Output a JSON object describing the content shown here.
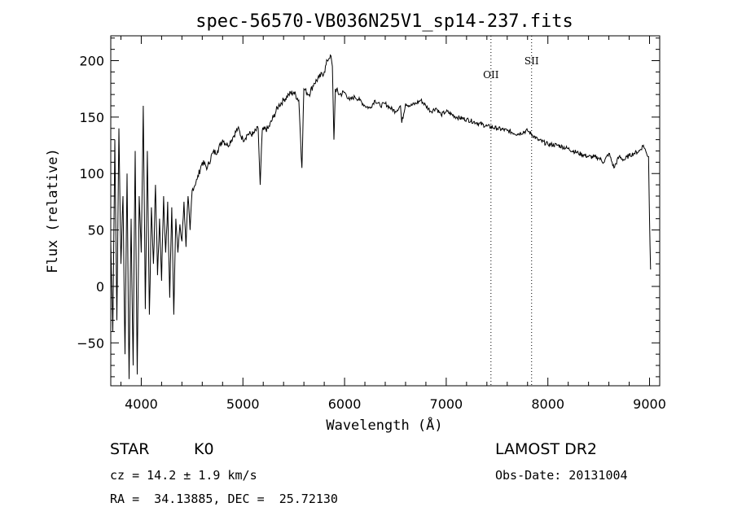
{
  "chart_data": {
    "type": "line",
    "title": "spec-56570-VB036N25V1_sp14-237.fits",
    "xlabel": "Wavelength (Å)",
    "ylabel": "Flux (relative)",
    "xlim": [
      3700,
      9100
    ],
    "ylim": [
      -88,
      222
    ],
    "xticks": [
      4000,
      5000,
      6000,
      7000,
      8000,
      9000
    ],
    "yticks": [
      -50,
      0,
      50,
      100,
      150,
      200
    ],
    "line_color": "#000000",
    "series": [
      {
        "x": [
          3700,
          3720,
          3740,
          3760,
          3780,
          3800,
          3820,
          3840,
          3860,
          3880,
          3900,
          3920,
          3940,
          3960,
          3980,
          4000,
          4020,
          4040,
          4060,
          4080,
          4100,
          4120,
          4140,
          4160,
          4180,
          4200,
          4220,
          4240,
          4260,
          4280,
          4300,
          4320,
          4340,
          4360,
          4380,
          4400,
          4420,
          4440,
          4460,
          4480,
          4500,
          4550,
          4600,
          4650,
          4700,
          4750,
          4800,
          4850,
          4900,
          4950,
          5000,
          5050,
          5100,
          5150,
          5170,
          5190,
          5250,
          5300,
          5350,
          5400,
          5450,
          5500,
          5550,
          5580,
          5600,
          5650,
          5700,
          5750,
          5800,
          5830,
          5860,
          5880,
          5895,
          5910,
          5950,
          6000,
          6050,
          6100,
          6150,
          6200,
          6250,
          6300,
          6350,
          6400,
          6450,
          6500,
          6550,
          6563,
          6600,
          6650,
          6700,
          6750,
          6800,
          6850,
          6900,
          6950,
          7000,
          7100,
          7200,
          7300,
          7400,
          7500,
          7600,
          7700,
          7800,
          7900,
          8000,
          8100,
          8200,
          8300,
          8400,
          8500,
          8550,
          8600,
          8650,
          8700,
          8750,
          8800,
          8850,
          8900,
          8940,
          8970,
          8990,
          9000,
          9010
        ],
        "y": [
          40,
          -40,
          130,
          -30,
          140,
          20,
          80,
          -60,
          100,
          -82,
          60,
          -70,
          120,
          -78,
          80,
          30,
          160,
          -20,
          120,
          -25,
          70,
          20,
          90,
          10,
          60,
          5,
          80,
          30,
          75,
          -10,
          70,
          -25,
          60,
          30,
          55,
          40,
          75,
          35,
          80,
          50,
          85,
          95,
          110,
          105,
          118,
          120,
          130,
          125,
          132,
          140,
          130,
          135,
          135,
          140,
          90,
          138,
          140,
          150,
          160,
          165,
          170,
          172,
          165,
          105,
          175,
          170,
          180,
          185,
          190,
          200,
          205,
          195,
          130,
          175,
          170,
          172,
          165,
          168,
          165,
          160,
          158,
          165,
          160,
          162,
          158,
          155,
          160,
          145,
          162,
          160,
          162,
          165,
          160,
          155,
          158,
          152,
          155,
          150,
          148,
          145,
          142,
          140,
          138,
          135,
          138,
          130,
          126,
          125,
          122,
          118,
          115,
          114,
          110,
          118,
          105,
          115,
          112,
          116,
          118,
          120,
          125,
          118,
          115,
          60,
          15
        ]
      }
    ],
    "line_markers": [
      {
        "label": "OII",
        "x": 7440
      },
      {
        "label": "SII",
        "x": 7840
      }
    ]
  },
  "info": {
    "object_type": "STAR",
    "subclass": "K0",
    "survey": "LAMOST DR2",
    "redshift": "cz = 14.2 ± 1.9 km/s",
    "obs_date": "Obs-Date: 20131004",
    "coords": "RA =  34.13885, DEC =  25.72130"
  }
}
